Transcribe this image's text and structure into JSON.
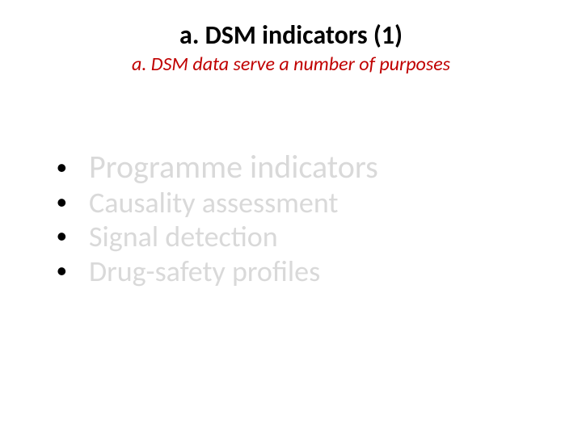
{
  "title": {
    "text": "a. DSM indicators (1)",
    "fontsize": 32,
    "color": "#000000",
    "weight": 700
  },
  "subtitle": {
    "text": "a. DSM data serve a number of purposes",
    "fontsize": 24,
    "color": "#c00000",
    "style": "italic"
  },
  "bullet_char": "•",
  "bullet_fontsize": 36,
  "list_items": [
    {
      "text": "Programme indicators",
      "fontsize": 40,
      "color": "#d9d9d9"
    },
    {
      "text": "Causality assessment",
      "fontsize": 36,
      "color": "#d9d9d9"
    },
    {
      "text": "Signal detection",
      "fontsize": 36,
      "color": "#d9d9d9"
    },
    {
      "text": "Drug-safety profiles",
      "fontsize": 36,
      "color": "#d9d9d9"
    }
  ],
  "background_color": "#ffffff"
}
